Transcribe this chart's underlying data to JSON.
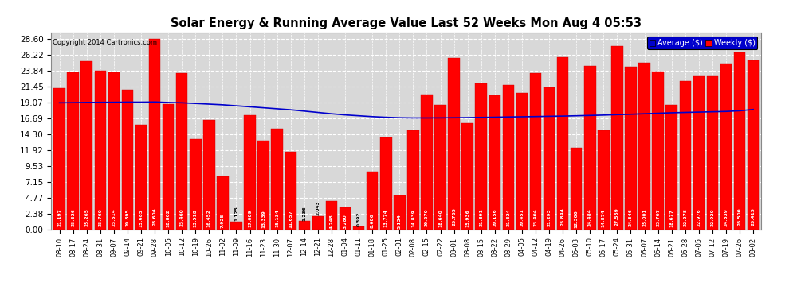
{
  "title": "Solar Energy & Running Average Value Last 52 Weeks Mon Aug 4 05:53",
  "copyright": "Copyright 2014 Cartronics.com",
  "yticks": [
    0.0,
    2.38,
    4.77,
    7.15,
    9.53,
    11.92,
    14.3,
    16.69,
    19.07,
    21.45,
    23.84,
    26.22,
    28.6
  ],
  "bar_color": "#ff0000",
  "avg_line_color": "#0000cc",
  "background_color": "#ffffff",
  "plot_bg_color": "#d8d8d8",
  "grid_color": "#ffffff",
  "categories": [
    "08-10",
    "08-17",
    "08-24",
    "08-31",
    "09-07",
    "09-14",
    "09-21",
    "09-28",
    "10-05",
    "10-12",
    "10-19",
    "10-26",
    "11-02",
    "11-09",
    "11-16",
    "11-23",
    "11-30",
    "12-07",
    "12-14",
    "12-21",
    "12-28",
    "01-04",
    "01-11",
    "01-18",
    "01-25",
    "02-01",
    "02-08",
    "02-15",
    "02-22",
    "03-01",
    "03-08",
    "03-15",
    "03-22",
    "03-29",
    "04-05",
    "04-12",
    "04-19",
    "04-26",
    "05-03",
    "05-10",
    "05-17",
    "05-24",
    "05-31",
    "06-07",
    "06-14",
    "06-21",
    "06-28",
    "07-05",
    "07-12",
    "07-19",
    "07-26",
    "08-02"
  ],
  "weekly_values": [
    21.197,
    23.626,
    25.265,
    23.76,
    23.614,
    20.895,
    15.685,
    28.604,
    18.802,
    23.46,
    13.518,
    16.452,
    7.925,
    1.125,
    17.089,
    13.339,
    15.134,
    11.657,
    1.236,
    2.043,
    4.248,
    3.28,
    0.392,
    8.686,
    13.774,
    5.134,
    14.839,
    20.27,
    18.64,
    25.765,
    15.936,
    21.891,
    20.156,
    21.624,
    20.451,
    23.404,
    21.293,
    25.844,
    12.306,
    24.484,
    14.874,
    27.559,
    24.346,
    25.001,
    23.707,
    18.677,
    22.278,
    22.976,
    22.92,
    24.839,
    26.5,
    25.415
  ],
  "avg_values": [
    19.0,
    19.02,
    19.05,
    19.07,
    19.08,
    19.1,
    19.1,
    19.12,
    19.05,
    19.0,
    18.9,
    18.8,
    18.7,
    18.55,
    18.4,
    18.25,
    18.1,
    17.95,
    17.75,
    17.55,
    17.35,
    17.18,
    17.05,
    16.92,
    16.82,
    16.75,
    16.72,
    16.72,
    16.73,
    16.75,
    16.77,
    16.8,
    16.83,
    16.87,
    16.9,
    16.93,
    16.97,
    17.0,
    17.05,
    17.1,
    17.15,
    17.22,
    17.28,
    17.35,
    17.42,
    17.5,
    17.55,
    17.6,
    17.65,
    17.7,
    17.8,
    18.0
  ],
  "legend_avg_color": "#0000cc",
  "legend_weekly_color": "#ff0000",
  "legend_text_color": "#ffffff",
  "legend_bg_color": "#0000cc"
}
